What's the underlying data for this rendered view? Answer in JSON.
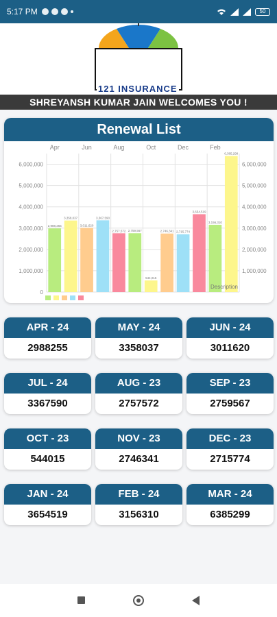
{
  "status_bar": {
    "time": "5:17 PM",
    "battery": "50"
  },
  "header": {
    "logo_text": "121 INSURANCE",
    "welcome": "SHREYANSH KUMAR  JAIN WELCOMES YOU !"
  },
  "renewal": {
    "title": "Renewal List"
  },
  "chart_data": {
    "type": "bar",
    "title": "Renewal List",
    "top_tick_labels": [
      "Apr",
      "Jun",
      "Aug",
      "Oct",
      "Dec",
      "Feb"
    ],
    "categories": [
      "Apr",
      "May",
      "Jun",
      "Jul",
      "Aug",
      "Sep",
      "Oct",
      "Nov",
      "Dec",
      "Jan",
      "Feb",
      "Mar"
    ],
    "values": [
      2988255,
      3358037,
      3011620,
      3367590,
      2757572,
      2759567,
      544015,
      2746341,
      2715774,
      3654519,
      3156310,
      6385299
    ],
    "value_labels": [
      "2,988,255",
      "3,358,037",
      "3,011,620",
      "3,367,590",
      "2,757,572",
      "2,759,567",
      "544,015",
      "2,746,341",
      "2,715,774",
      "3,654,519",
      "3,156,310",
      "6,385,299"
    ],
    "bar_colors": [
      "#b8ec7f",
      "#fdf68c",
      "#ffcc8e",
      "#9ee0f7",
      "#f9899d",
      "#b8ec7f",
      "#fdf68c",
      "#ffcc8e",
      "#9ee0f7",
      "#f9899d",
      "#b8ec7f",
      "#fdf68c"
    ],
    "legend_colors": [
      "#b8ec7f",
      "#fdf68c",
      "#ffcc8e",
      "#9ee0f7",
      "#f9899d"
    ],
    "ylim": [
      0,
      6500000
    ],
    "yticks": [
      0,
      1000000,
      2000000,
      3000000,
      4000000,
      5000000,
      6000000
    ],
    "ytick_labels_left": [
      "0",
      "1,000,000",
      "2,000,000",
      "3,000,000",
      "4,000,000",
      "5,000,000",
      "6,000,000"
    ],
    "ytick_labels_right": [
      "",
      "1,000,000",
      "2,000,000",
      "3,000,000",
      "4,000,000",
      "5,000,000",
      "6,000,000"
    ],
    "description_label": "Description",
    "grid": true,
    "legend_position": "bottom-left"
  },
  "tiles": [
    {
      "month": "APR - 24",
      "value": "2988255"
    },
    {
      "month": "MAY - 24",
      "value": "3358037"
    },
    {
      "month": "JUN - 24",
      "value": "3011620"
    },
    {
      "month": "JUL - 24",
      "value": "3367590"
    },
    {
      "month": "AUG - 23",
      "value": "2757572"
    },
    {
      "month": "SEP - 23",
      "value": "2759567"
    },
    {
      "month": "OCT - 23",
      "value": "544015"
    },
    {
      "month": "NOV - 23",
      "value": "2746341"
    },
    {
      "month": "DEC - 23",
      "value": "2715774"
    },
    {
      "month": "JAN - 24",
      "value": "3654519"
    },
    {
      "month": "FEB - 24",
      "value": "3156310"
    },
    {
      "month": "MAR - 24",
      "value": "6385299"
    }
  ],
  "colors": {
    "primary": "#1c5f86",
    "banner": "#3a3a3a"
  }
}
